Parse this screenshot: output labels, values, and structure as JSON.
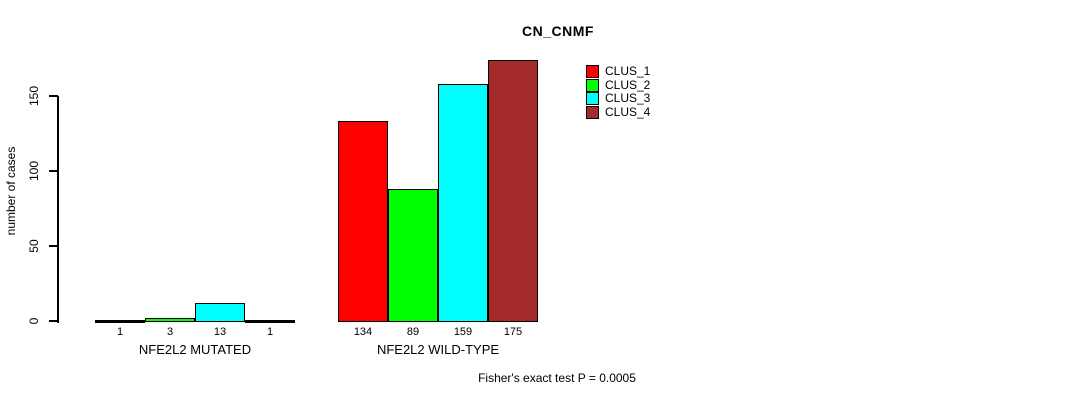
{
  "chart_data": {
    "type": "bar",
    "title": "CN_CNMF",
    "ylabel": "number of cases",
    "xlabel": "",
    "ylim": [
      0,
      175
    ],
    "yticks": [
      0,
      50,
      100,
      150
    ],
    "grid": false,
    "legend_position": "top-right",
    "bar_value_labels": true,
    "categories": [
      "NFE2L2 MUTATED",
      "NFE2L2 WILD-TYPE"
    ],
    "series": [
      {
        "name": "CLUS_1",
        "color": "#FF0000",
        "values": [
          1,
          134
        ]
      },
      {
        "name": "CLUS_2",
        "color": "#00FF00",
        "values": [
          3,
          89
        ]
      },
      {
        "name": "CLUS_3",
        "color": "#00FFFF",
        "values": [
          13,
          159
        ]
      },
      {
        "name": "CLUS_4",
        "color": "#A52A2A",
        "values": [
          1,
          175
        ]
      }
    ],
    "annotation": "Fisher's exact test P = 0.0005"
  },
  "colors": {
    "background": "#FFFFFF",
    "axis": "#000000",
    "text": "#000000",
    "bar_border": "#000000"
  }
}
